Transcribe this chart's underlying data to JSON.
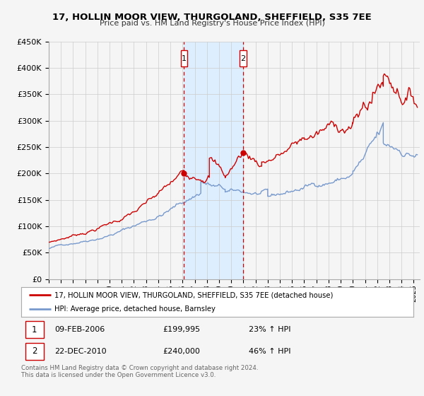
{
  "title": "17, HOLLIN MOOR VIEW, THURGOLAND, SHEFFIELD, S35 7EE",
  "subtitle": "Price paid vs. HM Land Registry's House Price Index (HPI)",
  "legend_line1": "17, HOLLIN MOOR VIEW, THURGOLAND, SHEFFIELD, S35 7EE (detached house)",
  "legend_line2": "HPI: Average price, detached house, Barnsley",
  "footer_line1": "Contains HM Land Registry data © Crown copyright and database right 2024.",
  "footer_line2": "This data is licensed under the Open Government Licence v3.0.",
  "sale1_date": "09-FEB-2006",
  "sale1_price": "£199,995",
  "sale1_hpi": "23% ↑ HPI",
  "sale1_year": 2006.12,
  "sale1_value": 199995,
  "sale2_date": "22-DEC-2010",
  "sale2_price": "£240,000",
  "sale2_hpi": "46% ↑ HPI",
  "sale2_year": 2010.97,
  "sale2_value": 240000,
  "red_color": "#cc0000",
  "blue_color": "#7799cc",
  "shade_color": "#ddeeff",
  "grid_color": "#cccccc",
  "bg_color": "#f5f5f5",
  "ylim": [
    0,
    450000
  ],
  "yticks": [
    0,
    50000,
    100000,
    150000,
    200000,
    250000,
    300000,
    350000,
    400000,
    450000
  ],
  "xlim_start": 1995.0,
  "xlim_end": 2025.5
}
